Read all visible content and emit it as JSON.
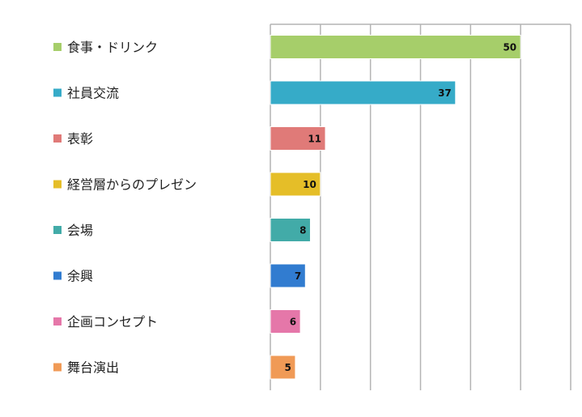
{
  "chart_data": {
    "type": "bar",
    "orientation": "horizontal",
    "categories": [
      "食事・ドリンク",
      "社員交流",
      "表彰",
      "経営層からのプレゼン",
      "会場",
      "余興",
      "企画コンセプト",
      "舞台演出"
    ],
    "values": [
      50,
      37,
      11,
      10,
      8,
      7,
      6,
      5
    ],
    "colors": [
      "#a6ce6a",
      "#36abc8",
      "#e07a78",
      "#e5be28",
      "#42aba8",
      "#317cd0",
      "#e577a9",
      "#f09a56"
    ],
    "xlim": [
      0,
      60
    ],
    "grid_step": 10,
    "grid": true,
    "tick_labels_shown": false,
    "data_labels": true,
    "legend": "left",
    "title": "",
    "xlabel": "",
    "ylabel": ""
  }
}
